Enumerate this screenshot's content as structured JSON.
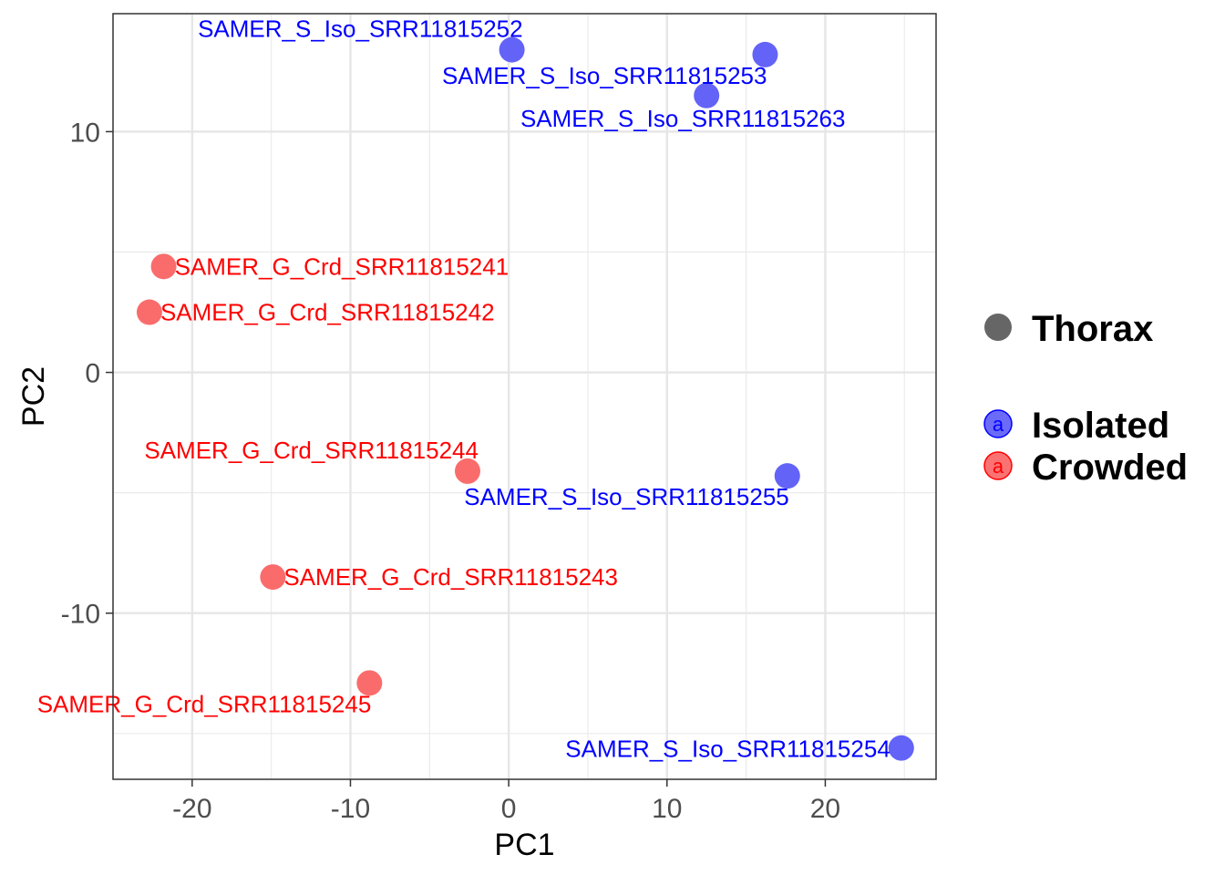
{
  "chart_data": {
    "type": "scatter",
    "xlabel": "PC1",
    "ylabel": "PC2",
    "xlim": [
      -25.0,
      27.0
    ],
    "ylim": [
      -16.9,
      14.9
    ],
    "x_ticks": [
      -20,
      -10,
      0,
      10,
      20
    ],
    "y_ticks": [
      -10,
      0,
      10
    ],
    "x_tick_labels": [
      "-20",
      "-10",
      "0",
      "10",
      "20"
    ],
    "y_tick_labels": [
      "-10",
      "0",
      "10"
    ],
    "grid": true,
    "legend": {
      "placement": "right",
      "shape_title": "Thorax",
      "shape_color": "#666666",
      "key_letter": "a",
      "groups": [
        {
          "name": "Isolated",
          "color": "#5b5bf7",
          "text_color": "#0000ff"
        },
        {
          "name": "Crowded",
          "color": "#fa6464",
          "text_color": "#ff0000"
        }
      ]
    },
    "points": [
      {
        "label": "SAMER_S_Iso_SRR11815252",
        "x": 0.2,
        "y": 13.4,
        "group": "Isolated",
        "label_pos": "above-left"
      },
      {
        "label": "SAMER_S_Iso_SRR11815253",
        "x": 16.2,
        "y": 13.2,
        "group": "Isolated",
        "label_pos": "below-left"
      },
      {
        "label": "SAMER_S_Iso_SRR11815263",
        "x": 12.5,
        "y": 11.5,
        "group": "Isolated",
        "label_pos": "below"
      },
      {
        "label": "SAMER_G_Crd_SRR11815241",
        "x": -21.8,
        "y": 4.4,
        "group": "Crowded",
        "label_pos": "right"
      },
      {
        "label": "SAMER_G_Crd_SRR11815242",
        "x": -22.7,
        "y": 2.5,
        "group": "Crowded",
        "label_pos": "right"
      },
      {
        "label": "SAMER_G_Crd_SRR11815244",
        "x": -2.6,
        "y": -4.1,
        "group": "Crowded",
        "label_pos": "above-left"
      },
      {
        "label": "SAMER_S_Iso_SRR11815255",
        "x": 17.6,
        "y": -4.3,
        "group": "Isolated",
        "label_pos": "below-left"
      },
      {
        "label": "SAMER_G_Crd_SRR11815243",
        "x": -14.9,
        "y": -8.5,
        "group": "Crowded",
        "label_pos": "right"
      },
      {
        "label": "SAMER_G_Crd_SRR11815245",
        "x": -8.8,
        "y": -12.9,
        "group": "Crowded",
        "label_pos": "below-left"
      },
      {
        "label": "SAMER_S_Iso_SRR11815254",
        "x": 24.8,
        "y": -15.6,
        "group": "Isolated",
        "label_pos": "left"
      }
    ]
  }
}
